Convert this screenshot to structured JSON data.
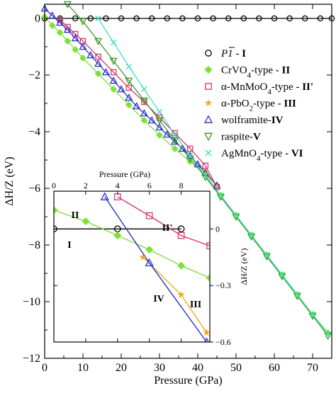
{
  "chart_data": [
    {
      "type": "line",
      "title": "",
      "xlabel": "Pressure (GPa)",
      "ylabel": "ΔH/Z (eV)",
      "xlim": [
        0,
        75
      ],
      "ylim": [
        -12,
        0.5
      ],
      "x_ticks": [
        0,
        10,
        20,
        30,
        40,
        50,
        60,
        70
      ],
      "y_ticks": [
        0,
        -2,
        -4,
        -6,
        -8,
        -10,
        -12
      ],
      "legend_position": "right",
      "series": [
        {
          "name": "P-1 - I",
          "marker": "circle",
          "color": "#000000",
          "x": [
            0,
            4,
            8,
            12,
            16,
            20,
            24,
            28,
            32,
            36,
            40,
            44,
            48,
            52,
            56,
            60,
            64,
            68,
            72,
            75
          ],
          "y": [
            0,
            0,
            0,
            0,
            0,
            0,
            0,
            0,
            0,
            0,
            0,
            0,
            0,
            0,
            0,
            0,
            0,
            0,
            0,
            0
          ]
        },
        {
          "name": "CrVO4-type - II",
          "marker": "diamond",
          "color": "#7fe03a",
          "x": [
            0,
            2,
            4,
            6,
            8,
            10,
            14,
            18,
            22,
            26,
            30,
            34,
            38,
            42,
            46,
            50,
            54,
            58,
            62,
            66,
            70,
            74
          ],
          "y": [
            0.05,
            -0.25,
            -0.5,
            -0.8,
            -1.1,
            -1.4,
            -1.95,
            -2.5,
            -3.05,
            -3.6,
            -4.12,
            -4.6,
            -5.05,
            -5.5,
            -6.25,
            -6.95,
            -7.65,
            -8.35,
            -9.05,
            -9.75,
            -10.45,
            -11.1
          ]
        },
        {
          "name": "α-MnMoO4-type - II'",
          "marker": "square",
          "color": "#d63a6e",
          "x": [
            4,
            6,
            8,
            10,
            14,
            18,
            22,
            26,
            30,
            34,
            38,
            42,
            45
          ],
          "y": [
            -0.05,
            -0.3,
            -0.55,
            -0.8,
            -1.35,
            -1.9,
            -2.45,
            -2.95,
            -3.5,
            -4.05,
            -4.6,
            -5.2,
            -5.95
          ]
        },
        {
          "name": "α-PbO2-type - III",
          "marker": "star",
          "color": "#f5a623",
          "x": [
            38,
            42,
            45
          ],
          "y": [
            -4.9,
            -5.4,
            -5.9
          ]
        },
        {
          "name": "wolframite-IV",
          "marker": "triangle-up",
          "color": "#2a33c8",
          "x": [
            0,
            2,
            4,
            6,
            8,
            10,
            12,
            14,
            16,
            18,
            20,
            22,
            24,
            26,
            28,
            30,
            32,
            34,
            36,
            38,
            40,
            42,
            45
          ],
          "y": [
            0.35,
            0.1,
            -0.15,
            -0.4,
            -0.7,
            -1.0,
            -1.3,
            -1.6,
            -1.9,
            -2.2,
            -2.5,
            -2.8,
            -3.1,
            -3.35,
            -3.6,
            -3.85,
            -4.1,
            -4.35,
            -4.6,
            -4.85,
            -5.15,
            -5.45,
            -5.9
          ]
        },
        {
          "name": "raspite-V",
          "marker": "triangle-down",
          "color": "#3a9a26",
          "x": [
            6,
            10,
            14,
            18,
            22,
            26,
            30,
            34,
            38,
            42,
            46,
            50,
            54,
            58,
            62,
            66,
            70,
            74
          ],
          "y": [
            0.5,
            -0.1,
            -0.8,
            -1.5,
            -2.2,
            -2.9,
            -3.6,
            -4.3,
            -4.95,
            -5.6,
            -6.3,
            -7.0,
            -7.7,
            -8.4,
            -9.1,
            -9.8,
            -10.5,
            -11.2
          ]
        },
        {
          "name": "AgMnO4-type - VI",
          "marker": "x",
          "color": "#40e0c8",
          "x": [
            14,
            18,
            22,
            26,
            30,
            34,
            38,
            42,
            46,
            50,
            54,
            58,
            62,
            66,
            70,
            74
          ],
          "y": [
            0.0,
            -0.85,
            -1.7,
            -2.5,
            -3.3,
            -4.1,
            -4.85,
            -5.55,
            -6.25,
            -6.95,
            -7.65,
            -8.35,
            -9.05,
            -9.75,
            -10.45,
            -11.15
          ]
        }
      ]
    },
    {
      "type": "line",
      "xlabel": "Pressure (GPa)",
      "ylabel": "ΔH/Z (eV)",
      "xlim": [
        0,
        9.8
      ],
      "ylim": [
        -0.6,
        0.2
      ],
      "x_ticks": [
        0,
        2,
        4,
        6,
        8
      ],
      "y_ticks": [
        0,
        -0.3,
        -0.6
      ],
      "series": [
        {
          "name": "I",
          "marker": "circle",
          "color": "#000000",
          "x": [
            0,
            4,
            8
          ],
          "y": [
            0,
            0,
            0
          ]
        },
        {
          "name": "II",
          "marker": "diamond",
          "color": "#7fe03a",
          "x": [
            0,
            2,
            4,
            6,
            8,
            9.8
          ],
          "y": [
            0.1,
            0.04,
            -0.035,
            -0.11,
            -0.195,
            -0.26
          ]
        },
        {
          "name": "II'",
          "marker": "square",
          "color": "#d63a6e",
          "x": [
            4,
            6,
            8,
            9.8
          ],
          "y": [
            0.17,
            0.07,
            -0.035,
            -0.09
          ]
        },
        {
          "name": "III",
          "marker": "star",
          "color": "#f5a623",
          "x": [
            5.6,
            8,
            9.6
          ],
          "y": [
            -0.15,
            -0.35,
            -0.55
          ]
        },
        {
          "name": "IV",
          "marker": "triangle-up",
          "color": "#2a33c8",
          "x": [
            3.2,
            6,
            9.6
          ],
          "y": [
            0.17,
            -0.18,
            -0.6
          ]
        }
      ],
      "labels": [
        "I",
        "II",
        "II'",
        "III",
        "IV"
      ]
    }
  ],
  "legend": [
    {
      "pre": "P",
      "bar": "1",
      "suffix": " - ",
      "roman": "I",
      "marker": "circle",
      "color": "#000000"
    },
    {
      "pre": "CrVO",
      "sub": "4",
      "post": "-type - ",
      "roman": "II",
      "marker": "diamond",
      "color": "#7fe03a"
    },
    {
      "pre": "α-MnMoO",
      "sub": "4",
      "post": "-type - ",
      "roman": "II'",
      "marker": "square",
      "color": "#d63a6e"
    },
    {
      "pre": "α-PbO",
      "sub": "2",
      "post": "-type - ",
      "roman": "III",
      "marker": "star",
      "color": "#f5a623"
    },
    {
      "pre": "wolframite-",
      "roman": "IV",
      "marker": "triangle-up",
      "color": "#2a33c8"
    },
    {
      "pre": "raspite-",
      "roman": "V",
      "marker": "triangle-down",
      "color": "#3a9a26"
    },
    {
      "pre": "AgMnO",
      "sub": "4",
      "post": "-type - ",
      "roman": "VI",
      "marker": "x",
      "color": "#40e0c8"
    }
  ]
}
